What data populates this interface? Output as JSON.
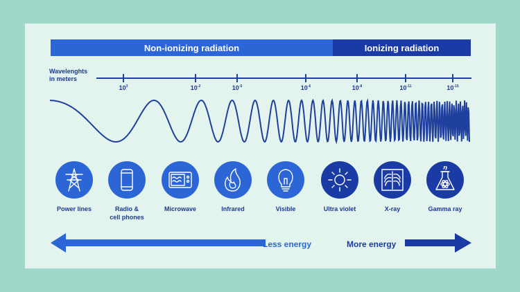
{
  "bands": {
    "non_ionizing": "Non-ionizing radiation",
    "ionizing": "Ionizing radiation"
  },
  "axis": {
    "label_line1": "Wavelenghts",
    "label_line2": "in meters",
    "ticks": [
      {
        "base": "10",
        "exp": "3"
      },
      {
        "base": "10",
        "exp": "-2"
      },
      {
        "base": "10",
        "exp": "-5"
      },
      {
        "base": "10",
        "exp": "-6"
      },
      {
        "base": "10",
        "exp": "-8"
      },
      {
        "base": "10",
        "exp": "-11"
      },
      {
        "base": "10",
        "exp": "-15"
      }
    ]
  },
  "items": [
    {
      "label": "Power lines",
      "icon": "power-tower-icon"
    },
    {
      "label": "Radio &\ncell phones",
      "icon": "phone-icon"
    },
    {
      "label": "Microwave",
      "icon": "microwave-icon"
    },
    {
      "label": "Infrared",
      "icon": "flame-icon"
    },
    {
      "label": "Visible",
      "icon": "lightbulb-icon"
    },
    {
      "label": "Ultra violet",
      "icon": "sun-icon"
    },
    {
      "label": "X-ray",
      "icon": "xray-ribcage-icon"
    },
    {
      "label": "Gamma ray",
      "icon": "flask-atom-icon"
    }
  ],
  "energy": {
    "less": "Less energy",
    "more": "More energy"
  },
  "colors": {
    "non_ionizing": "#2c66d6",
    "ionizing": "#1a3ba3",
    "background": "#9fd8cb",
    "card": "#e3f4ef"
  }
}
